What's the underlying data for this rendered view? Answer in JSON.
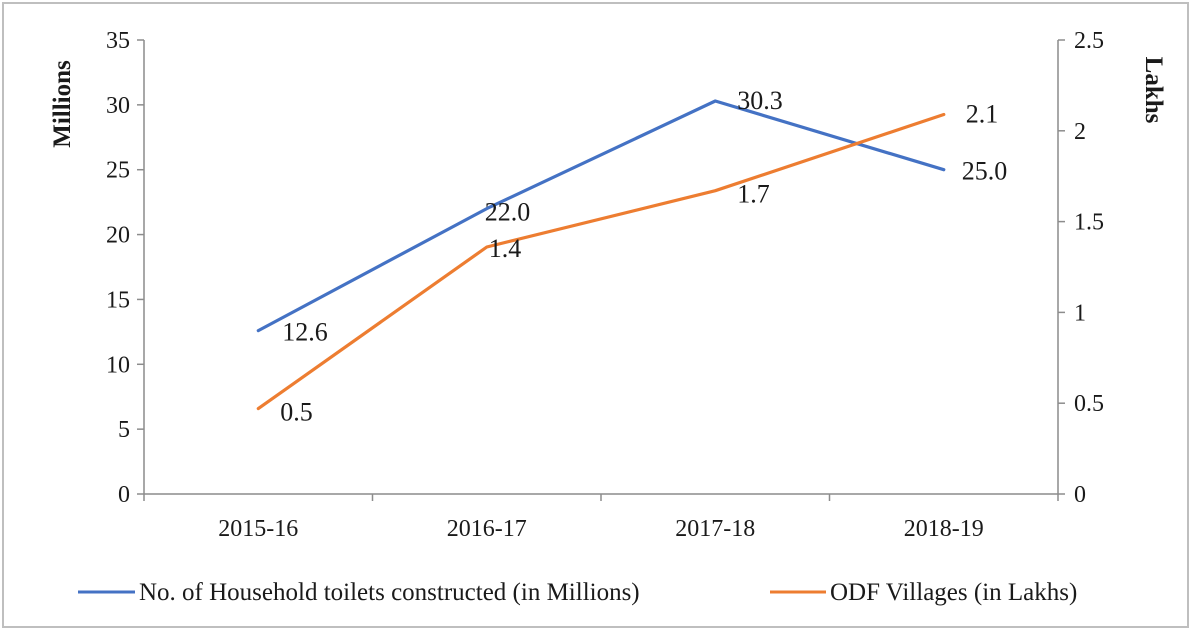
{
  "chart_data": {
    "type": "line",
    "categories": [
      "2015-16",
      "2016-17",
      "2017-18",
      "2018-19"
    ],
    "series": [
      {
        "name": "No. of Household toilets constructed (in Millions)",
        "axis": "left",
        "color": "#4472c4",
        "values": [
          12.6,
          22.0,
          30.3,
          25.0
        ],
        "labels": [
          "12.6",
          "22.0",
          "30.3",
          "25.0"
        ]
      },
      {
        "name": "ODF Villages (in Lakhs)",
        "axis": "right",
        "color": "#ed7d31",
        "values": [
          0.47,
          1.36,
          1.67,
          2.09
        ],
        "labels": [
          "0.5",
          "1.4",
          "1.7",
          "2.1"
        ]
      }
    ],
    "ylabel": "Millions",
    "y2label": "Lakhs",
    "ylim": [
      0,
      35
    ],
    "y2lim": [
      0,
      2.5
    ],
    "yticks": [
      "0",
      "5",
      "10",
      "15",
      "20",
      "25",
      "30",
      "35"
    ],
    "y2ticks": [
      "0",
      "0.5",
      "1",
      "1.5",
      "2",
      "2.5"
    ],
    "grid": false,
    "legend_position": "bottom"
  }
}
